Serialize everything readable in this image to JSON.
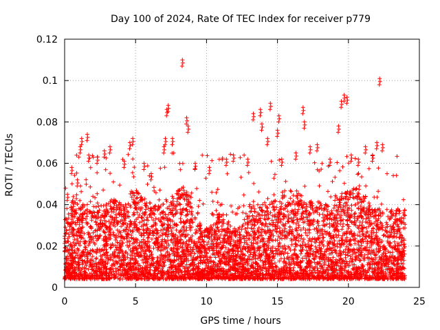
{
  "chart_data": {
    "type": "scatter",
    "title": "Day 100 of 2024, Rate Of TEC Index for receiver p779",
    "xlabel": "GPS time / hours",
    "ylabel": "ROTI / TECUs",
    "xlim": [
      0,
      25
    ],
    "ylim": [
      0,
      0.12
    ],
    "xticks": [
      0,
      5,
      10,
      15,
      20,
      25
    ],
    "xtick_labels": [
      "0",
      "5",
      "10",
      "15",
      "20",
      "25"
    ],
    "yticks": [
      0,
      0.02,
      0.04,
      0.06,
      0.08,
      0.1,
      0.12
    ],
    "ytick_labels": [
      "0",
      "0.02",
      "0.04",
      "0.06",
      "0.08",
      "0.1",
      "0.12"
    ],
    "grid": true,
    "marker": "plus",
    "color": "#ff0000",
    "series": [
      {
        "name": "ROTI",
        "note": "Dense cloud of thousands of samples spanning 0-24 h, mostly 0.005-0.04 TECU/s; representative outliers listed",
        "x": [
          0.2,
          0.5,
          0.9,
          1.1,
          1.2,
          1.6,
          1.7,
          2.3,
          2.8,
          3.2,
          4.2,
          4.6,
          4.8,
          5.6,
          6.1,
          7.0,
          7.1,
          7.2,
          7.3,
          7.6,
          8.3,
          8.6,
          8.7,
          9.2,
          10.2,
          11.4,
          11.9,
          12.9,
          13.3,
          13.8,
          13.9,
          14.3,
          14.5,
          15.0,
          15.1,
          15.3,
          16.3,
          16.8,
          16.9,
          17.3,
          17.8,
          18.7,
          19.3,
          19.5,
          19.7,
          19.9,
          20.2,
          20.7,
          21.2,
          21.7,
          22.0,
          22.2,
          22.4
        ],
        "y": [
          0.045,
          0.058,
          0.052,
          0.068,
          0.072,
          0.074,
          0.064,
          0.063,
          0.066,
          0.068,
          0.061,
          0.07,
          0.072,
          0.06,
          0.055,
          0.068,
          0.072,
          0.086,
          0.088,
          0.072,
          0.11,
          0.082,
          0.078,
          0.06,
          0.058,
          0.062,
          0.064,
          0.062,
          0.084,
          0.086,
          0.079,
          0.072,
          0.089,
          0.076,
          0.083,
          0.062,
          0.065,
          0.087,
          0.08,
          0.068,
          0.069,
          0.062,
          0.078,
          0.09,
          0.093,
          0.092,
          0.064,
          0.062,
          0.068,
          0.064,
          0.07,
          0.101,
          0.069
        ]
      }
    ]
  }
}
